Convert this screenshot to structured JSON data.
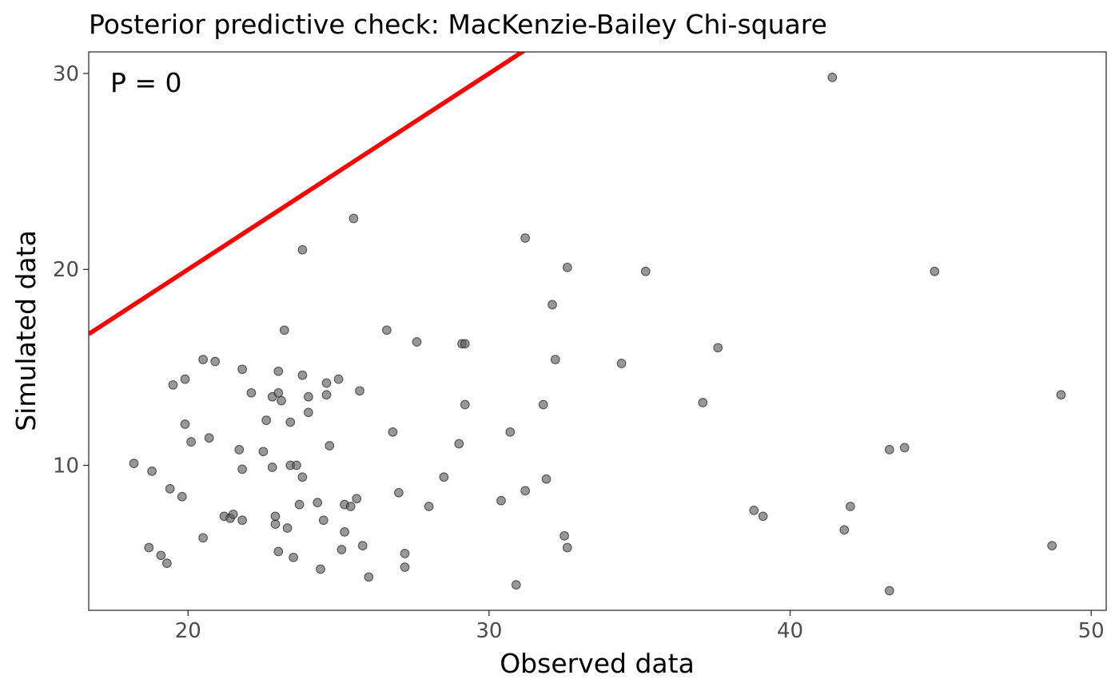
{
  "chart_data": {
    "type": "scatter",
    "title": "Posterior predictive check: MacKenzie-Bailey Chi-square",
    "xlabel": "Observed data",
    "ylabel": "Simulated data",
    "xlim": [
      16.7,
      50.5
    ],
    "ylim": [
      2.6,
      31.1
    ],
    "x_ticks": [
      20,
      30,
      40,
      50
    ],
    "y_ticks": [
      10,
      20,
      30
    ],
    "grid": false,
    "annotation": "P = 0",
    "reference_line": {
      "slope": 1,
      "intercept": 0,
      "color": "#ff0000"
    },
    "point_color": "#595959",
    "points": [
      [
        18.2,
        10.1
      ],
      [
        18.7,
        5.8
      ],
      [
        18.8,
        9.7
      ],
      [
        19.1,
        5.4
      ],
      [
        19.3,
        5.0
      ],
      [
        19.4,
        8.8
      ],
      [
        19.5,
        14.1
      ],
      [
        19.8,
        8.4
      ],
      [
        19.9,
        12.1
      ],
      [
        19.9,
        14.4
      ],
      [
        20.1,
        11.2
      ],
      [
        20.5,
        6.3
      ],
      [
        20.5,
        15.4
      ],
      [
        20.7,
        11.4
      ],
      [
        20.9,
        15.3
      ],
      [
        21.2,
        7.4
      ],
      [
        21.4,
        7.3
      ],
      [
        21.5,
        7.5
      ],
      [
        21.7,
        10.8
      ],
      [
        21.8,
        14.9
      ],
      [
        21.8,
        7.2
      ],
      [
        21.8,
        9.8
      ],
      [
        22.1,
        13.7
      ],
      [
        22.5,
        10.7
      ],
      [
        22.6,
        12.3
      ],
      [
        22.8,
        13.5
      ],
      [
        22.8,
        9.9
      ],
      [
        22.9,
        7.0
      ],
      [
        22.9,
        7.4
      ],
      [
        23.0,
        5.6
      ],
      [
        23.0,
        14.8
      ],
      [
        23.0,
        13.7
      ],
      [
        23.1,
        13.3
      ],
      [
        23.2,
        16.9
      ],
      [
        23.3,
        6.8
      ],
      [
        23.4,
        10.0
      ],
      [
        23.4,
        12.2
      ],
      [
        23.5,
        5.3
      ],
      [
        23.6,
        10.0
      ],
      [
        23.7,
        8.0
      ],
      [
        23.8,
        14.6
      ],
      [
        23.8,
        9.4
      ],
      [
        23.8,
        21.0
      ],
      [
        24.0,
        13.5
      ],
      [
        24.0,
        12.7
      ],
      [
        24.3,
        8.1
      ],
      [
        24.4,
        4.7
      ],
      [
        24.5,
        7.2
      ],
      [
        24.6,
        14.2
      ],
      [
        24.6,
        13.6
      ],
      [
        24.7,
        11.0
      ],
      [
        25.0,
        14.4
      ],
      [
        25.1,
        5.7
      ],
      [
        25.2,
        8.0
      ],
      [
        25.2,
        6.6
      ],
      [
        25.4,
        7.9
      ],
      [
        25.5,
        22.6
      ],
      [
        25.6,
        8.3
      ],
      [
        25.7,
        13.8
      ],
      [
        25.8,
        5.9
      ],
      [
        26.0,
        4.3
      ],
      [
        26.6,
        16.9
      ],
      [
        26.8,
        11.7
      ],
      [
        27.0,
        8.6
      ],
      [
        27.2,
        4.8
      ],
      [
        27.2,
        5.5
      ],
      [
        27.6,
        16.3
      ],
      [
        28.0,
        7.9
      ],
      [
        28.5,
        9.4
      ],
      [
        29.0,
        11.1
      ],
      [
        29.1,
        16.2
      ],
      [
        29.2,
        16.2
      ],
      [
        29.2,
        13.1
      ],
      [
        30.4,
        8.2
      ],
      [
        30.7,
        11.7
      ],
      [
        30.9,
        3.9
      ],
      [
        31.2,
        21.6
      ],
      [
        31.2,
        8.7
      ],
      [
        31.8,
        13.1
      ],
      [
        31.9,
        9.3
      ],
      [
        32.1,
        18.2
      ],
      [
        32.2,
        15.4
      ],
      [
        32.5,
        6.4
      ],
      [
        32.6,
        20.1
      ],
      [
        32.6,
        5.8
      ],
      [
        34.4,
        15.2
      ],
      [
        35.2,
        19.9
      ],
      [
        37.1,
        13.2
      ],
      [
        37.6,
        16.0
      ],
      [
        38.8,
        7.7
      ],
      [
        39.1,
        7.4
      ],
      [
        41.4,
        29.8
      ],
      [
        41.8,
        6.7
      ],
      [
        42.0,
        7.9
      ],
      [
        43.3,
        3.6
      ],
      [
        43.3,
        10.8
      ],
      [
        43.8,
        10.9
      ],
      [
        44.8,
        19.9
      ],
      [
        48.7,
        5.9
      ],
      [
        49.0,
        13.6
      ]
    ]
  }
}
